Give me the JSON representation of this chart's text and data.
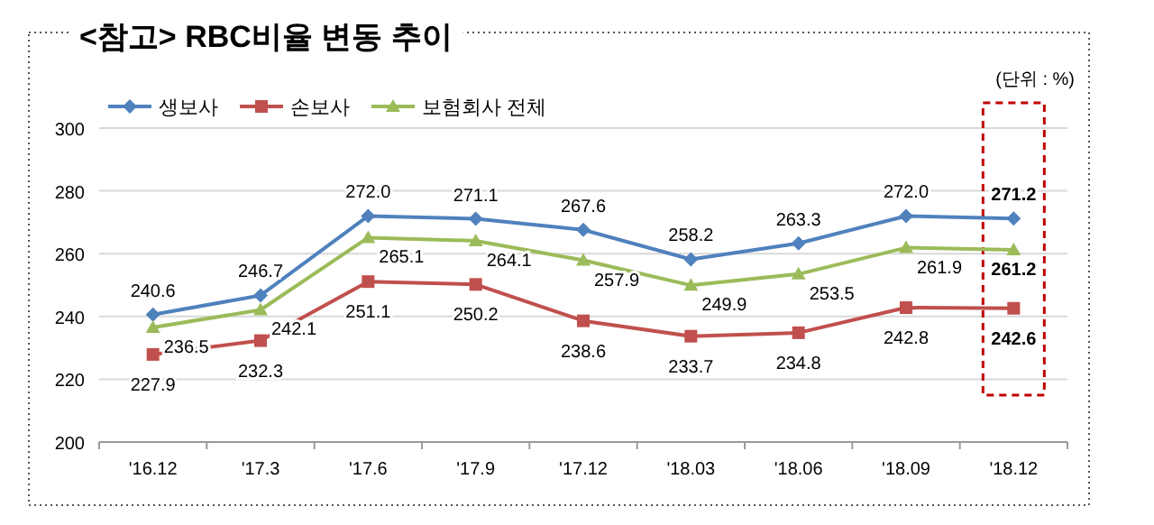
{
  "chart_data": {
    "type": "line",
    "title": "<참고> RBC비율 변동 추이",
    "annotations": [
      "(단위 : %)"
    ],
    "categories": [
      "'16.12",
      "'17.3",
      "'17.6",
      "'17.9",
      "'17.12",
      "'18.03",
      "'18.06",
      "'18.09",
      "'18.12"
    ],
    "series": [
      {
        "name": "생보사",
        "color": "#4f81bd",
        "marker": "diamond",
        "values": [
          240.6,
          246.7,
          272.0,
          271.1,
          267.6,
          258.2,
          263.3,
          272.0,
          271.2
        ],
        "value_labels": [
          "240.6",
          "246.7",
          "272.0",
          "271.1",
          "267.6",
          "258.2",
          "263.3",
          "272.0",
          "271.2"
        ]
      },
      {
        "name": "손보사",
        "color": "#c0504d",
        "marker": "square",
        "values": [
          227.9,
          232.3,
          251.1,
          250.2,
          238.6,
          233.7,
          234.8,
          242.8,
          242.6
        ],
        "value_labels": [
          "227.9",
          "232.3",
          "251.1",
          "250.2",
          "238.6",
          "233.7",
          "234.8",
          "242.8",
          "242.6"
        ]
      },
      {
        "name": "보험회사 전체",
        "color": "#9bbb59",
        "marker": "triangle",
        "values": [
          236.5,
          242.1,
          265.1,
          264.1,
          257.9,
          249.9,
          253.5,
          261.9,
          261.2
        ],
        "value_labels": [
          "236.5",
          "242.1",
          "265.1",
          "264.1",
          "257.9",
          "249.9",
          "253.5",
          "261.9",
          "261.2"
        ]
      }
    ],
    "ylim": [
      200,
      300
    ],
    "yticks": [
      200,
      220,
      240,
      260,
      280,
      300
    ],
    "grid": "y",
    "legend": "top left",
    "line_style": "solid"
  }
}
